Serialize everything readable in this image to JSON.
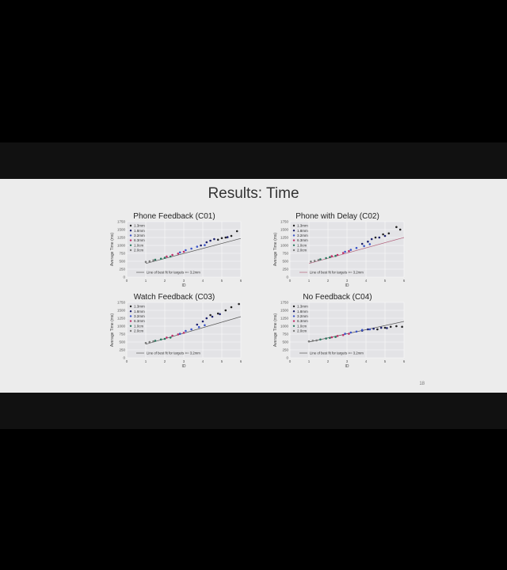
{
  "slide": {
    "title": "Results: Time",
    "page_number": "18"
  },
  "legend_labels": [
    "1.3mm",
    "1.8mm",
    "3.2mm",
    "6.3mm",
    "1.0cm",
    "2.0cm"
  ],
  "colors": {
    "1.3mm": "#222222",
    "1.8mm": "#1b1f6b",
    "3.2mm": "#3b55c9",
    "6.3mm": "#c0306a",
    "1.0cm": "#2c7a60",
    "2.0cm": "#7a7a7a",
    "fit_line": "#555555",
    "fit_line_c02": "#b0607a"
  },
  "chart_data": [
    {
      "type": "scatter",
      "title": "Phone Feedback (C01)",
      "xlabel": "ID",
      "ylabel": "Average Time (ms)",
      "xticks": [
        "0",
        "1",
        "2",
        "3",
        "4",
        "5",
        "6"
      ],
      "yticks": [
        "0",
        "250",
        "500",
        "750",
        "1000",
        "1250",
        "1500",
        "1750"
      ],
      "xlim": [
        0,
        6
      ],
      "ylim": [
        0,
        1750
      ],
      "grid": true,
      "legend_position": "upper-left",
      "fit_line_label": "Line of best fit for targets >= 3.2mm",
      "fit": {
        "x": [
          1,
          6
        ],
        "y": [
          430,
          1220
        ]
      },
      "series": [
        {
          "name": "1.3mm",
          "x": [
            4.8,
            5.0,
            5.2,
            5.5,
            5.8
          ],
          "y": [
            1180,
            1230,
            1250,
            1300,
            1450
          ]
        },
        {
          "name": "1.8mm",
          "x": [
            3.9,
            4.2,
            4.4,
            4.6,
            5.3
          ],
          "y": [
            1000,
            1100,
            1150,
            1200,
            1260
          ]
        },
        {
          "name": "3.2mm",
          "x": [
            2.8,
            3.1,
            3.4,
            3.7,
            4.1
          ],
          "y": [
            780,
            850,
            900,
            960,
            1010
          ]
        },
        {
          "name": "6.3mm",
          "x": [
            2.1,
            2.4,
            2.7,
            3.0
          ],
          "y": [
            650,
            700,
            740,
            800
          ]
        },
        {
          "name": "1.0cm",
          "x": [
            1.5,
            1.8,
            2.0,
            2.3
          ],
          "y": [
            550,
            580,
            610,
            650
          ]
        },
        {
          "name": "2.0cm",
          "x": [
            1.0,
            1.2,
            1.4
          ],
          "y": [
            480,
            500,
            530
          ]
        }
      ]
    },
    {
      "type": "scatter",
      "title": "Phone with Delay (C02)",
      "xlabel": "ID",
      "ylabel": "Average Time (ms)",
      "xticks": [
        "0",
        "1",
        "2",
        "3",
        "4",
        "5",
        "6"
      ],
      "yticks": [
        "0",
        "250",
        "500",
        "750",
        "1000",
        "1250",
        "1500",
        "1750"
      ],
      "xlim": [
        0,
        6
      ],
      "ylim": [
        0,
        1750
      ],
      "grid": true,
      "legend_position": "upper-left",
      "fit_line_label": "Line of best fit for targets >= 3.2mm",
      "fit": {
        "x": [
          1,
          6
        ],
        "y": [
          430,
          1250
        ]
      },
      "series": [
        {
          "name": "1.3mm",
          "x": [
            4.5,
            4.9,
            5.2,
            5.6,
            5.8
          ],
          "y": [
            1250,
            1350,
            1380,
            1580,
            1500
          ]
        },
        {
          "name": "1.8mm",
          "x": [
            3.8,
            4.1,
            4.3,
            4.7,
            5.0
          ],
          "y": [
            1050,
            1120,
            1200,
            1250,
            1300
          ]
        },
        {
          "name": "3.2mm",
          "x": [
            2.9,
            3.2,
            3.5,
            3.9,
            4.2
          ],
          "y": [
            800,
            860,
            920,
            980,
            1040
          ]
        },
        {
          "name": "6.3mm",
          "x": [
            2.2,
            2.5,
            2.8,
            3.1
          ],
          "y": [
            660,
            700,
            760,
            820
          ]
        },
        {
          "name": "1.0cm",
          "x": [
            1.6,
            1.9,
            2.1,
            2.4
          ],
          "y": [
            560,
            600,
            630,
            670
          ]
        },
        {
          "name": "2.0cm",
          "x": [
            1.1,
            1.3,
            1.5
          ],
          "y": [
            490,
            510,
            540
          ]
        }
      ]
    },
    {
      "type": "scatter",
      "title": "Watch Feedback (C03)",
      "xlabel": "ID",
      "ylabel": "Average Time (ms)",
      "xticks": [
        "0",
        "1",
        "2",
        "3",
        "4",
        "5",
        "6"
      ],
      "yticks": [
        "0",
        "250",
        "500",
        "750",
        "1000",
        "1250",
        "1500",
        "1750"
      ],
      "xlim": [
        0,
        6
      ],
      "ylim": [
        0,
        1750
      ],
      "grid": true,
      "legend_position": "upper-left",
      "fit_line_label": "Line of best fit for targets >= 3.2mm",
      "fit": {
        "x": [
          1,
          6
        ],
        "y": [
          430,
          1300
        ]
      },
      "series": [
        {
          "name": "1.3mm",
          "x": [
            4.4,
            4.8,
            5.2,
            5.5,
            5.9
          ],
          "y": [
            1350,
            1400,
            1500,
            1600,
            1700
          ]
        },
        {
          "name": "1.8mm",
          "x": [
            3.7,
            4.0,
            4.2,
            4.5,
            4.9
          ],
          "y": [
            1050,
            1150,
            1250,
            1300,
            1380
          ]
        },
        {
          "name": "3.2mm",
          "x": [
            2.8,
            3.1,
            3.4,
            3.8,
            4.1
          ],
          "y": [
            760,
            850,
            900,
            970,
            1030
          ]
        },
        {
          "name": "6.3mm",
          "x": [
            2.1,
            2.4,
            2.7,
            3.0
          ],
          "y": [
            640,
            700,
            740,
            790
          ]
        },
        {
          "name": "1.0cm",
          "x": [
            1.5,
            1.8,
            2.0,
            2.3
          ],
          "y": [
            540,
            580,
            600,
            640
          ]
        },
        {
          "name": "2.0cm",
          "x": [
            1.0,
            1.2,
            1.4
          ],
          "y": [
            470,
            500,
            520
          ]
        }
      ]
    },
    {
      "type": "scatter",
      "title": "No Feedback (C04)",
      "xlabel": "ID",
      "ylabel": "Average Time (ms)",
      "xticks": [
        "0",
        "1",
        "2",
        "3",
        "4",
        "5",
        "6"
      ],
      "yticks": [
        "0",
        "250",
        "500",
        "750",
        "1000",
        "1250",
        "1500",
        "1750"
      ],
      "xlim": [
        0,
        6
      ],
      "ylim": [
        0,
        1750
      ],
      "grid": true,
      "legend_position": "upper-left",
      "fit_line_label": "Line of best fit for targets >= 3.2mm",
      "fit": {
        "x": [
          1,
          6
        ],
        "y": [
          500,
          1150
        ]
      },
      "series": [
        {
          "name": "1.3mm",
          "x": [
            4.6,
            5.0,
            5.3,
            5.6,
            5.9
          ],
          "y": [
            900,
            950,
            980,
            1000,
            980
          ]
        },
        {
          "name": "1.8mm",
          "x": [
            3.8,
            4.1,
            4.4,
            4.8,
            5.1
          ],
          "y": [
            860,
            900,
            920,
            950,
            940
          ]
        },
        {
          "name": "3.2mm",
          "x": [
            2.9,
            3.2,
            3.5,
            3.8,
            4.2
          ],
          "y": [
            760,
            800,
            830,
            880,
            900
          ]
        },
        {
          "name": "6.3mm",
          "x": [
            2.2,
            2.5,
            2.8,
            3.1
          ],
          "y": [
            650,
            690,
            720,
            760
          ]
        },
        {
          "name": "1.0cm",
          "x": [
            1.6,
            1.9,
            2.1,
            2.4
          ],
          "y": [
            580,
            610,
            630,
            660
          ]
        },
        {
          "name": "2.0cm",
          "x": [
            1.0,
            1.2,
            1.4
          ],
          "y": [
            520,
            540,
            550
          ]
        }
      ]
    }
  ]
}
